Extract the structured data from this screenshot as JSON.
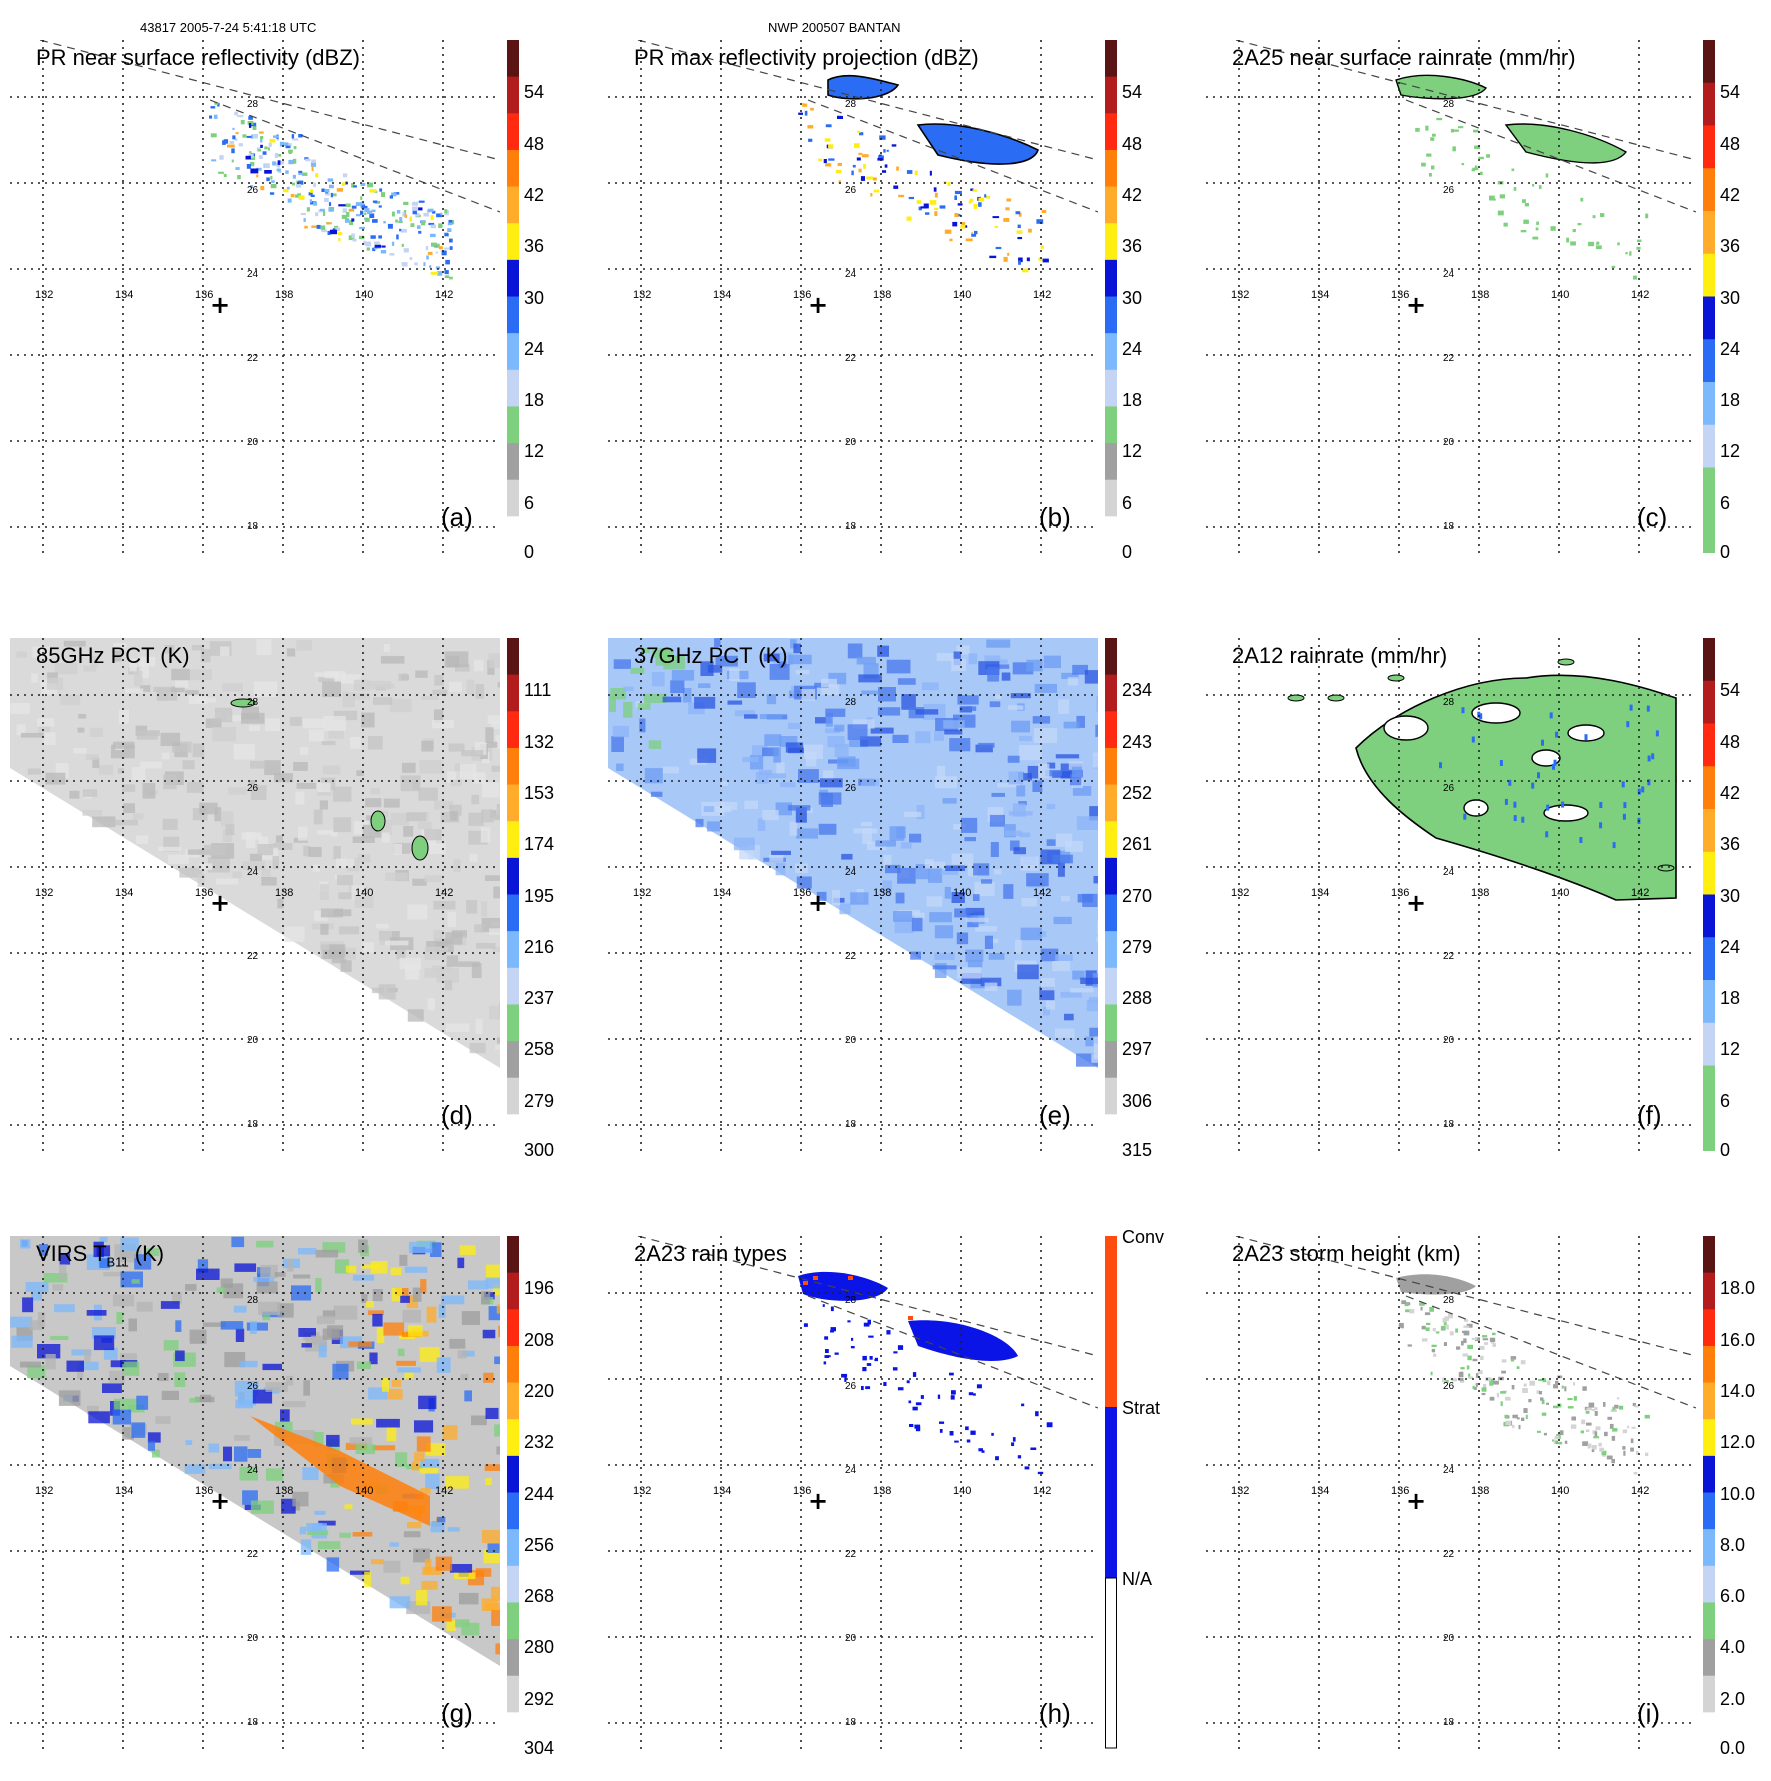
{
  "header": {
    "left": "43817 2005-7-24 5:41:18 UTC",
    "center": "NWP 200507 BANTAN"
  },
  "map": {
    "lon_labels": [
      "132",
      "134",
      "136",
      "138",
      "140",
      "142"
    ],
    "lat_labels": [
      "28",
      "26",
      "24",
      "22",
      "20",
      "18"
    ],
    "center_marker": "+"
  },
  "colors": {
    "maroon": "#5a1414",
    "darkred": "#b21c1c",
    "red": "#ff2a10",
    "orange": "#ff7f0a",
    "lightorange": "#ffac2a",
    "yellow": "#ffee10",
    "darkblue": "#0a14d6",
    "blue": "#2a6cf4",
    "lightblue": "#7cb8fc",
    "paleblue": "#c4d4f4",
    "green": "#7ed07e",
    "gray": "#a0a0a0",
    "lightgray": "#d4d4d4",
    "white": "#ffffff",
    "rain_conv": "#ff4d10",
    "rain_strat": "#0a14e6"
  },
  "panels": [
    {
      "id": "a",
      "title": "PR near surface reflectivity (dBZ)",
      "label": "(a)",
      "ticks": [
        "54",
        "48",
        "42",
        "36",
        "30",
        "24",
        "18",
        "12",
        "6",
        "0"
      ]
    },
    {
      "id": "b",
      "title": "PR max reflectivity projection (dBZ)",
      "label": "(b)",
      "ticks": [
        "54",
        "48",
        "42",
        "36",
        "30",
        "24",
        "18",
        "12",
        "6",
        "0"
      ]
    },
    {
      "id": "c",
      "title": "2A25 near surface rainrate (mm/hr)",
      "label": "(c)",
      "ticks": [
        "54",
        "48",
        "42",
        "36",
        "30",
        "24",
        "18",
        "12",
        "6",
        "0"
      ]
    },
    {
      "id": "d",
      "title": "85GHz PCT (K)",
      "label": "(d)",
      "ticks": [
        "111",
        "132",
        "153",
        "174",
        "195",
        "216",
        "237",
        "258",
        "279",
        "300"
      ]
    },
    {
      "id": "e",
      "title": "37GHz PCT (K)",
      "label": "(e)",
      "ticks": [
        "234",
        "243",
        "252",
        "261",
        "270",
        "279",
        "288",
        "297",
        "306",
        "315"
      ]
    },
    {
      "id": "f",
      "title": "2A12 rainrate (mm/hr)",
      "label": "(f)",
      "ticks": [
        "54",
        "48",
        "42",
        "36",
        "30",
        "24",
        "18",
        "12",
        "6",
        "0"
      ]
    },
    {
      "id": "g",
      "title": "VIRS T",
      "title_sub": "B11",
      "title_tail": " (K)",
      "label": "(g)",
      "ticks": [
        "196",
        "208",
        "220",
        "232",
        "244",
        "256",
        "268",
        "280",
        "292",
        "304"
      ]
    },
    {
      "id": "h",
      "title": "2A23 rain types",
      "label": "(h)",
      "ticks": [
        "Conv",
        "Strat",
        "N/A"
      ]
    },
    {
      "id": "i",
      "title": "2A23 storm height (km)",
      "label": "(i)",
      "ticks": [
        "18.0",
        "16.0",
        "14.0",
        "12.0",
        "10.0",
        "8.0",
        "6.0",
        "4.0",
        "2.0",
        "0.0"
      ]
    }
  ]
}
